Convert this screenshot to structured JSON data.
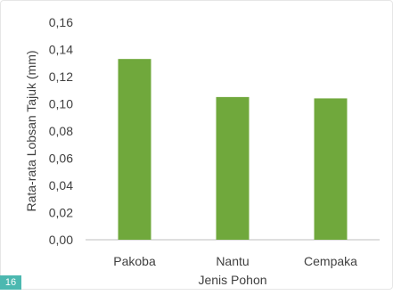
{
  "page_number": "16",
  "colors": {
    "bar": "#70a83c",
    "axis": "#bfbfbf",
    "text": "#404040",
    "badge": "#4cb8b0"
  },
  "chart_data": {
    "type": "bar",
    "categories": [
      "Pakoba",
      "Nantu",
      "Cempaka"
    ],
    "values": [
      0.133,
      0.105,
      0.104
    ],
    "xlabel": "Jenis Pohon",
    "ylabel": "Rata-rata Lobsan Tajuk (mm)",
    "ylim": [
      0,
      0.16
    ],
    "yticks": [
      0,
      0.02,
      0.04,
      0.06,
      0.08,
      0.1,
      0.12,
      0.14,
      0.16
    ],
    "ytick_labels": [
      "0,00",
      "0,02",
      "0,04",
      "0,06",
      "0,08",
      "0,10",
      "0,12",
      "0,14",
      "0,16"
    ],
    "grid": false,
    "legend": "none"
  }
}
